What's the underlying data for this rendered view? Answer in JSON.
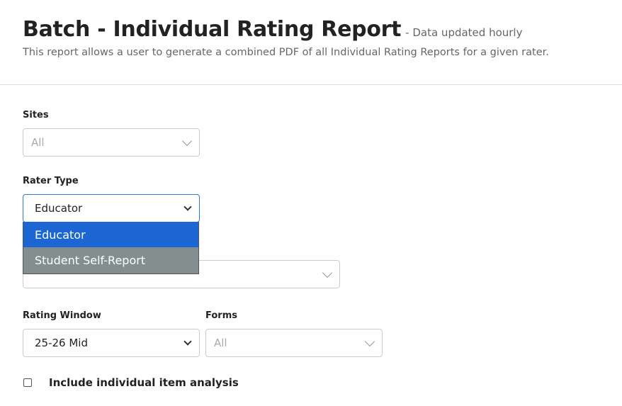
{
  "header": {
    "title": "Batch - Individual Rating Report",
    "subtitle": "- Data updated hourly",
    "description": "This report allows a user to generate a combined PDF of all Individual Rating Reports for a given rater."
  },
  "filters": {
    "sites": {
      "label": "Sites",
      "value": "All"
    },
    "rater_type": {
      "label": "Rater Type",
      "value": "Educator",
      "options": [
        "Educator",
        "Student Self-Report"
      ],
      "highlighted": "Educator"
    },
    "rating_window": {
      "label": "Rating Window",
      "value": "25-26 Mid"
    },
    "forms": {
      "label": "Forms",
      "value": "All"
    }
  },
  "checkbox": {
    "label": "Include individual item analysis",
    "checked": false
  },
  "colors": {
    "accent": "#1b66d2",
    "hover_option": "#858e8f",
    "focus_border": "#2f7bd0"
  }
}
